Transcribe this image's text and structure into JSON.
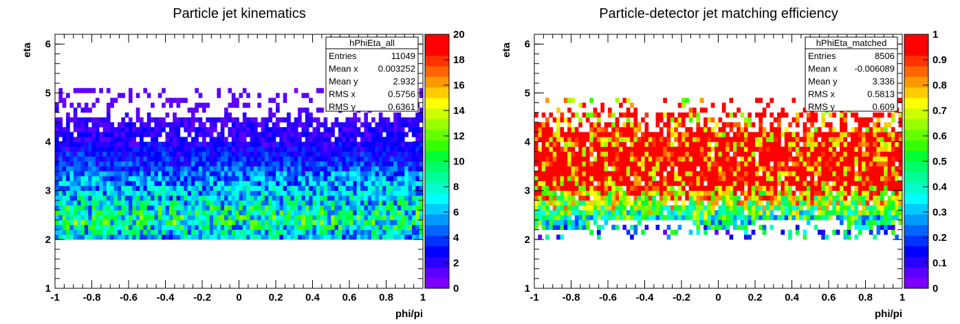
{
  "chart_data": [
    {
      "type": "heatmap",
      "title": "Particle jet kinematics",
      "xlabel": "phi/pi",
      "ylabel": "eta",
      "xlim": [
        -1,
        1
      ],
      "ylim": [
        1,
        6.2
      ],
      "x_ticks": [
        "-1",
        "-0.8",
        "-0.6",
        "-0.4",
        "-0.2",
        "0",
        "0.2",
        "0.4",
        "0.6",
        "0.8",
        "1"
      ],
      "y_ticks": [
        "1",
        "2",
        "3",
        "4",
        "5",
        "6"
      ],
      "colorbar": {
        "min": 0,
        "max": 20,
        "ticks": [
          "0",
          "2",
          "4",
          "6",
          "8",
          "10",
          "12",
          "14",
          "16",
          "18",
          "20"
        ]
      },
      "grid": false,
      "stats_box": {
        "name": "hPhiEta_all",
        "rows": [
          {
            "label": "Entries",
            "value": "11049"
          },
          {
            "label": "Mean x",
            "value": "0.003252"
          },
          {
            "label": "Mean y",
            "value": "2.932"
          },
          {
            "label": "RMS x",
            "value": "0.5756"
          },
          {
            "label": "RMS y",
            "value": "0.6361"
          }
        ]
      },
      "distribution": {
        "eta_range": [
          2.0,
          5.0
        ],
        "density_profile": [
          {
            "eta": 2.05,
            "level": 6
          },
          {
            "eta": 2.35,
            "level": 9
          },
          {
            "eta": 2.65,
            "level": 8
          },
          {
            "eta": 2.95,
            "level": 6
          },
          {
            "eta": 3.25,
            "level": 5
          },
          {
            "eta": 3.6,
            "level": 3
          },
          {
            "eta": 4.0,
            "level": 2
          },
          {
            "eta": 4.4,
            "level": 1.5
          },
          {
            "eta": 4.75,
            "level": 0.8
          }
        ]
      }
    },
    {
      "type": "heatmap",
      "title": "Particle-detector jet matching efficiency",
      "xlabel": "phi/pi",
      "ylabel": "eta",
      "xlim": [
        -1,
        1
      ],
      "ylim": [
        1,
        6.2
      ],
      "x_ticks": [
        "-1",
        "-0.8",
        "-0.6",
        "-0.4",
        "-0.2",
        "0",
        "0.2",
        "0.4",
        "0.6",
        "0.8",
        "1"
      ],
      "y_ticks": [
        "1",
        "2",
        "3",
        "4",
        "5",
        "6"
      ],
      "colorbar": {
        "min": 0,
        "max": 1,
        "ticks": [
          "0",
          "0.1",
          "0.2",
          "0.3",
          "0.4",
          "0.5",
          "0.6",
          "0.7",
          "0.8",
          "0.9",
          "1"
        ]
      },
      "grid": false,
      "stats_box": {
        "name": "hPhiEta_matched",
        "rows": [
          {
            "label": "Entries",
            "value": "8506"
          },
          {
            "label": "Mean x",
            "value": "-0.006089"
          },
          {
            "label": "Mean y",
            "value": "3.336"
          },
          {
            "label": "RMS x",
            "value": "0.5813"
          },
          {
            "label": "RMS y",
            "value": "0.609"
          }
        ]
      },
      "distribution": {
        "eta_range": [
          2.05,
          4.85
        ],
        "efficiency_profile": [
          {
            "eta": 2.2,
            "value": 0.3
          },
          {
            "eta": 2.5,
            "value": 0.5
          },
          {
            "eta": 2.8,
            "value": 0.7
          },
          {
            "eta": 3.1,
            "value": 0.85
          },
          {
            "eta": 3.5,
            "value": 0.95
          },
          {
            "eta": 4.0,
            "value": 0.9
          },
          {
            "eta": 4.5,
            "value": 0.85
          }
        ]
      }
    }
  ]
}
